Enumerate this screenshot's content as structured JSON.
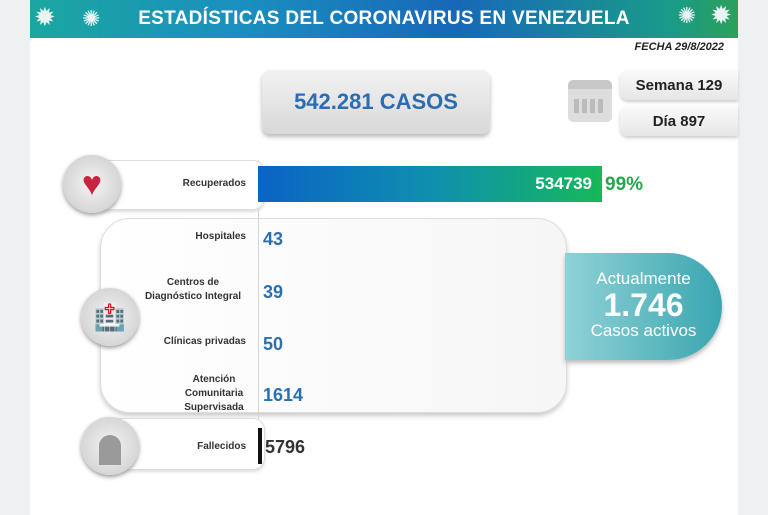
{
  "header": {
    "title": "ESTADÍSTICAS DEL CORONAVIRUS EN VENEZUELA",
    "date": "FECHA 29/8/2022"
  },
  "total_cases": "542.281 CASOS",
  "week": "Semana 129",
  "day": "Día 897",
  "recovered": {
    "label": "Recuperados",
    "value": "534739",
    "percent": "99%",
    "fill_fraction": 0.99
  },
  "hospitalization": [
    {
      "label": "Hospitales",
      "value": "43"
    },
    {
      "label": "Centros de Diagnóstico Integral",
      "value": "39"
    },
    {
      "label": "Clínicas privadas",
      "value": "50"
    },
    {
      "label": "Atención Comunitaria Supervisada",
      "value": "1614"
    }
  ],
  "active": {
    "prefix": "Actualmente",
    "value": "1.746",
    "suffix": "Casos activos"
  },
  "deaths": {
    "label": "Fallecidos",
    "value": "5796"
  },
  "colors": {
    "accent_blue": "#2a6fb0",
    "green": "#23a84b",
    "teal": "#3aa6b0"
  },
  "icons": [
    "virus-icon",
    "calendar-icon",
    "heart-icon",
    "hospital-icon",
    "tombstone-icon"
  ]
}
